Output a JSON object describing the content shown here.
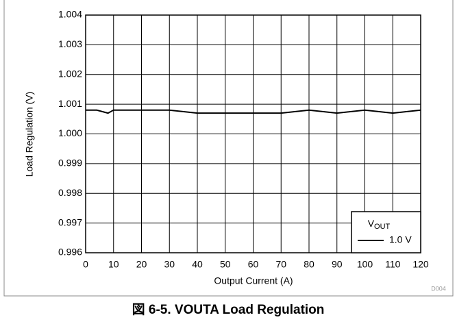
{
  "chart_data": {
    "type": "line",
    "caption": "図 6-5. VOUTA Load Regulation",
    "code": "D004",
    "x_label": "Output Current (A)",
    "y_label": "Load Regulation (V)",
    "x": [
      0,
      4,
      8,
      10,
      20,
      30,
      40,
      50,
      60,
      70,
      80,
      90,
      100,
      110,
      120
    ],
    "series": [
      {
        "name": "1.0 V",
        "color": "#000000",
        "values": [
          1.0008,
          1.0008,
          1.0007,
          1.0008,
          1.0008,
          1.0008,
          1.0007,
          1.0007,
          1.0007,
          1.0007,
          1.0008,
          1.0007,
          1.0008,
          1.0007,
          1.0008
        ]
      }
    ],
    "legend_title": {
      "main": "V",
      "sub": "OUT"
    },
    "legend": "lower right",
    "xlim": [
      0,
      120
    ],
    "xticks": [
      0,
      10,
      20,
      30,
      40,
      50,
      60,
      70,
      80,
      90,
      100,
      110,
      120
    ],
    "ylim": [
      0.996,
      1.004
    ],
    "yticks": [
      0.996,
      0.997,
      0.998,
      0.999,
      {
        "value": 1.0,
        "label": "1.000"
      },
      1.001,
      1.002,
      1.003,
      1.004
    ],
    "grid": true
  }
}
